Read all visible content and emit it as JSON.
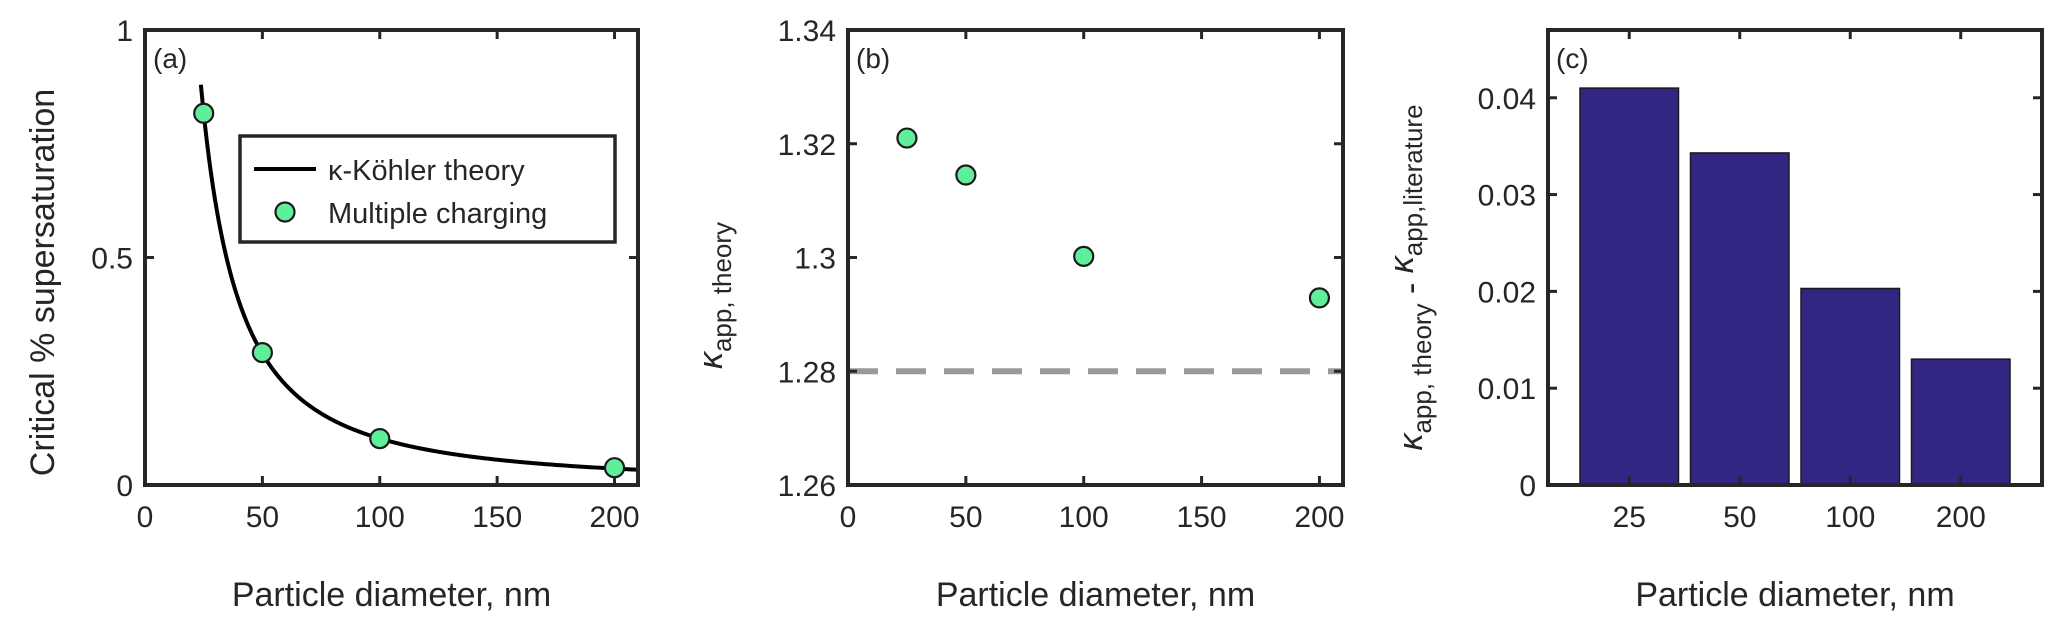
{
  "colors": {
    "marker_fill": "#5fee9a",
    "marker_edge": "#1a1a1a",
    "curve": "#000000",
    "bar_fill": "#312783",
    "dashed_line": "#999999",
    "axis": "#262626"
  },
  "chart_data": [
    {
      "type": "line",
      "panel_label": "(a)",
      "xlabel": "Particle diameter, nm",
      "ylabel": "Critical % supersaturation",
      "xlim": [
        0,
        210
      ],
      "ylim": [
        0,
        1
      ],
      "xticks": [
        0,
        50,
        100,
        150,
        200
      ],
      "yticks": [
        0,
        0.5,
        1
      ],
      "ytick_labels": [
        "0",
        "0.5",
        "1"
      ],
      "legend": {
        "placement": "top-right",
        "entries": [
          "κ-Köhler theory",
          "Multiple charging"
        ]
      },
      "series": [
        {
          "name": "κ-Köhler theory",
          "kind": "curve",
          "model": "power-law",
          "coef": 0.8172,
          "ref_x": 25,
          "exponent": -1.5,
          "x_range": [
            23.8,
            210
          ]
        },
        {
          "name": "Multiple charging",
          "kind": "markers",
          "x": [
            25,
            50,
            100,
            200
          ],
          "y": [
            0.817,
            0.291,
            0.102,
            0.038
          ]
        }
      ]
    },
    {
      "type": "scatter",
      "panel_label": "(b)",
      "xlabel": "Particle diameter, nm",
      "ylabel_main": "κ",
      "ylabel_sub": "app, theory",
      "xlim": [
        0,
        210
      ],
      "ylim": [
        1.26,
        1.34
      ],
      "xticks": [
        0,
        50,
        100,
        150,
        200
      ],
      "yticks": [
        1.26,
        1.28,
        1.3,
        1.32,
        1.34
      ],
      "ytick_labels": [
        "1.26",
        "1.28",
        "1.3",
        "1.32",
        "1.34"
      ],
      "reference_line": {
        "y": 1.28,
        "style": "dashed"
      },
      "series": [
        {
          "x": [
            25,
            50,
            100,
            200
          ],
          "y": [
            1.321,
            1.3145,
            1.3002,
            1.2929
          ]
        }
      ]
    },
    {
      "type": "bar",
      "panel_label": "(c)",
      "xlabel": "Particle diameter, nm",
      "ylabel_parts": [
        {
          "main": "κ",
          "sub": "app, theory"
        },
        {
          "sep": " - "
        },
        {
          "main": "κ",
          "sub": "app,literature"
        }
      ],
      "categories": [
        "25",
        "50",
        "100",
        "200"
      ],
      "values": [
        0.041,
        0.0343,
        0.0203,
        0.013
      ],
      "ylim": [
        0,
        0.047
      ],
      "yticks": [
        0,
        0.01,
        0.02,
        0.03,
        0.04
      ],
      "ytick_labels": [
        "0",
        "0.01",
        "0.02",
        "0.03",
        "0.04"
      ]
    }
  ]
}
